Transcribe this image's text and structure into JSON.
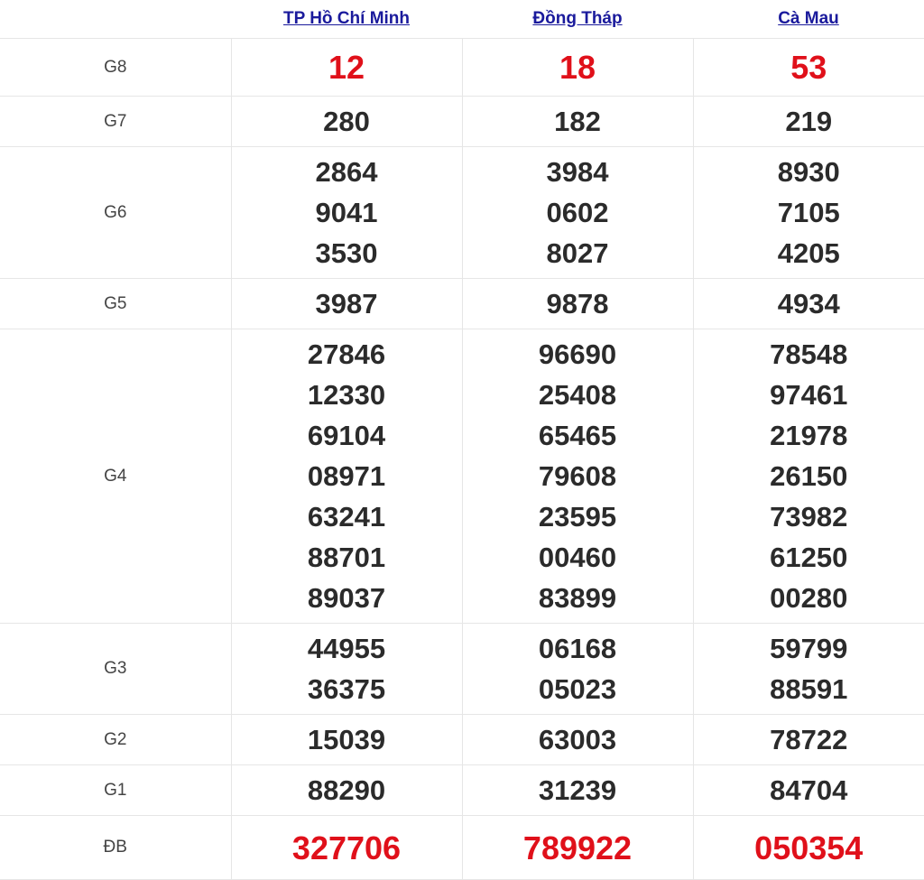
{
  "provinces": [
    "TP Hồ Chí Minh",
    "Đồng Tháp",
    "Cà Mau"
  ],
  "accent_color": "#e0101a",
  "link_color": "#1a1a9c",
  "prizes": [
    {
      "label": "G8",
      "highlight": true,
      "values": [
        [
          "12"
        ],
        [
          "18"
        ],
        [
          "53"
        ]
      ]
    },
    {
      "label": "G7",
      "highlight": false,
      "values": [
        [
          "280"
        ],
        [
          "182"
        ],
        [
          "219"
        ]
      ]
    },
    {
      "label": "G6",
      "highlight": false,
      "values": [
        [
          "2864",
          "9041",
          "3530"
        ],
        [
          "3984",
          "0602",
          "8027"
        ],
        [
          "8930",
          "7105",
          "4205"
        ]
      ]
    },
    {
      "label": "G5",
      "highlight": false,
      "values": [
        [
          "3987"
        ],
        [
          "9878"
        ],
        [
          "4934"
        ]
      ]
    },
    {
      "label": "G4",
      "highlight": false,
      "values": [
        [
          "27846",
          "12330",
          "69104",
          "08971",
          "63241",
          "88701",
          "89037"
        ],
        [
          "96690",
          "25408",
          "65465",
          "79608",
          "23595",
          "00460",
          "83899"
        ],
        [
          "78548",
          "97461",
          "21978",
          "26150",
          "73982",
          "61250",
          "00280"
        ]
      ]
    },
    {
      "label": "G3",
      "highlight": false,
      "values": [
        [
          "44955",
          "36375"
        ],
        [
          "06168",
          "05023"
        ],
        [
          "59799",
          "88591"
        ]
      ]
    },
    {
      "label": "G2",
      "highlight": false,
      "values": [
        [
          "15039"
        ],
        [
          "63003"
        ],
        [
          "78722"
        ]
      ]
    },
    {
      "label": "G1",
      "highlight": false,
      "values": [
        [
          "88290"
        ],
        [
          "31239"
        ],
        [
          "84704"
        ]
      ]
    },
    {
      "label": "ĐB",
      "highlight": true,
      "values": [
        [
          "327706"
        ],
        [
          "789922"
        ],
        [
          "050354"
        ]
      ]
    }
  ]
}
